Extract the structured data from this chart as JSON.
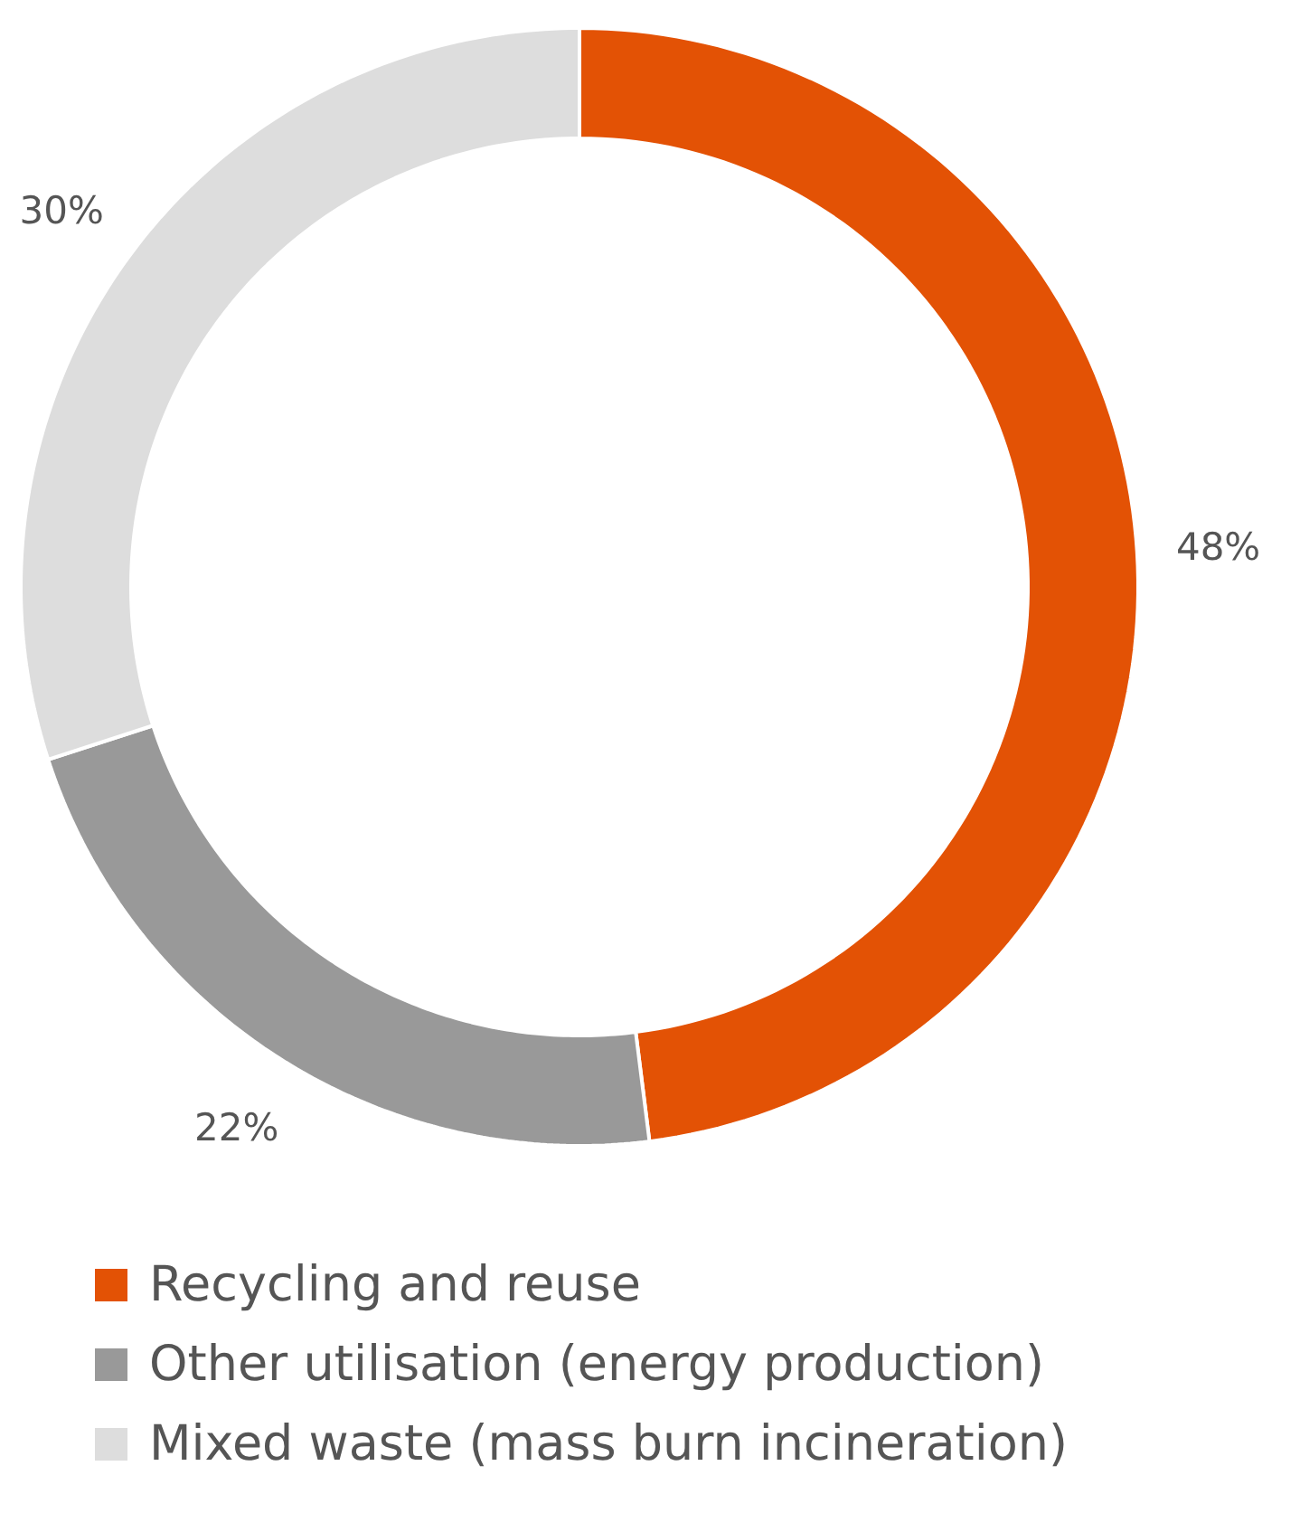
{
  "chart_data": {
    "type": "donut",
    "categories": [
      "Recycling and reuse",
      "Other utilisation (energy production)",
      "Mixed waste (mass burn incineration)"
    ],
    "values": [
      48,
      22,
      30
    ],
    "colors": [
      "#e35205",
      "#999999",
      "#dddddd"
    ],
    "value_labels": [
      "48%",
      "22%",
      "30%"
    ],
    "legend": "bottom"
  }
}
